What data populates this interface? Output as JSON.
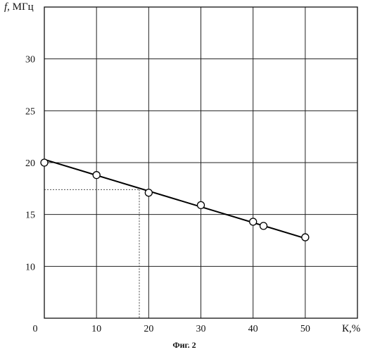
{
  "chart_data": {
    "type": "line",
    "ylabel_var": "f",
    "ylabel_unit": ", МГц",
    "xlabel": "К,%",
    "caption": "Фиг. 2",
    "origin_label": "0",
    "xlim": [
      0,
      60
    ],
    "ylim": [
      5,
      35
    ],
    "x_ticks": [
      10,
      20,
      30,
      40,
      50
    ],
    "y_ticks": [
      10,
      15,
      20,
      25,
      30
    ],
    "x_tick_labels": [
      "10",
      "20",
      "30",
      "40",
      "50"
    ],
    "y_tick_labels": [
      "10",
      "15",
      "20",
      "25",
      "30"
    ],
    "grid": true,
    "fit_line": {
      "x": [
        0,
        50
      ],
      "y": [
        20.3,
        12.7
      ]
    },
    "points": {
      "x": [
        0,
        10,
        20,
        30,
        40,
        42,
        50
      ],
      "y": [
        20,
        18.8,
        17.1,
        15.9,
        14.3,
        13.9,
        12.8
      ]
    },
    "guide": {
      "x": 18.2,
      "y": 17.4
    }
  }
}
